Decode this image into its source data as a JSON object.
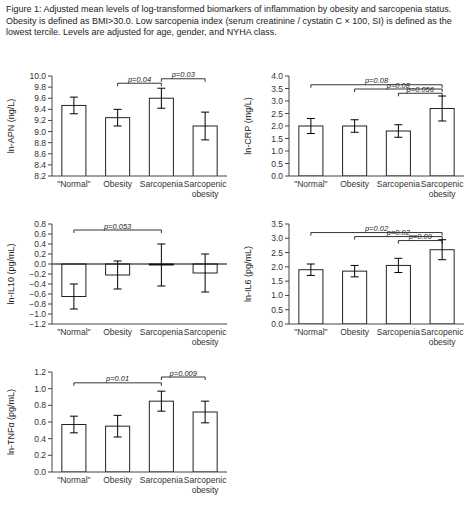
{
  "chart_data": [
    {
      "type": "bar",
      "title": "Figure 1: Adjusted mean levels of log-transformed biomarkers of inflammation by obesity and sarcopenia status. Obesity is defined as BMI>30.0. Low sarcopenia index (serum creatinine / cystatin C × 100, SI) is defined as the lowest tercile. Levels are adjusted for age, gender, and NYHA class.",
      "y_label": "ln-APN (ng/L)",
      "categories": [
        "\"Normal\"",
        "Obesity",
        "Sarcopenia",
        "Sarcopenic\nobesity"
      ],
      "values": [
        9.47,
        9.25,
        9.6,
        9.1
      ],
      "errors": [
        0.15,
        0.15,
        0.18,
        0.25
      ],
      "color": "white",
      "grid": false,
      "ylim": [
        8.2,
        10.0
      ],
      "yticks": [
        8.2,
        8.4,
        8.6,
        8.8,
        {
          "value": 9,
          "label": "9.0"
        },
        9.2,
        9.4,
        9.6,
        9.8,
        {
          "value": 10,
          "label": "10.0"
        }
      ],
      "annotations": [
        {
          "from": "Obesity",
          "to": "Sarcopenia",
          "y": 9.87,
          "label": "p=0.04"
        },
        {
          "from": "Sarcopenia",
          "to": "Sarcopenic\nobesity",
          "y": 9.95,
          "label": "p=0.03"
        }
      ]
    },
    {
      "type": "bar",
      "y_label": "ln-CRP (mg/L)",
      "categories": [
        "\"Normal\"",
        "Obesity",
        "Sarcopenia",
        "Sarcopenic\nobesity"
      ],
      "values": [
        2.0,
        2.0,
        1.8,
        2.7
      ],
      "errors": [
        0.3,
        0.25,
        0.25,
        0.5
      ],
      "color": "white",
      "grid": false,
      "ylim": [
        0,
        4.0
      ],
      "yticks": [
        {
          "value": 0,
          "label": "0.0"
        },
        0.5,
        {
          "value": 1,
          "label": "1.0"
        },
        1.5,
        {
          "value": 2,
          "label": "2.0"
        },
        2.5,
        {
          "value": 3,
          "label": "3.0"
        },
        3.5,
        {
          "value": 4,
          "label": "4.0"
        }
      ],
      "annotations": [
        {
          "from": "\"Normal\"",
          "to": "Sarcopenic\nobesity",
          "y": 3.65,
          "label": "p=0.08"
        },
        {
          "from": "Obesity",
          "to": "Sarcopenic\nobesity",
          "y": 3.48,
          "label": "p=0.08"
        },
        {
          "from": "Sarcopenia",
          "to": "Sarcopenic\nobesity",
          "y": 3.31,
          "label": "p=0.056"
        }
      ]
    },
    {
      "type": "bar",
      "y_label": "ln-IL10 (pg/mL)",
      "categories": [
        "\"Normal\"",
        "Obesity",
        "Sarcopenia",
        "Sarcopenic\nobesity"
      ],
      "values": [
        -0.65,
        -0.22,
        -0.02,
        -0.18
      ],
      "errors": [
        0.25,
        0.28,
        0.42,
        0.38
      ],
      "color": "white",
      "grid": false,
      "ylim": [
        -1.2,
        0.8
      ],
      "yticks": [
        {
          "value": -1.2,
          "label": "−1.2"
        },
        {
          "value": -1,
          "label": "−1.0"
        },
        {
          "value": -0.8,
          "label": "−0.8"
        },
        {
          "value": -0.6,
          "label": "−0.6"
        },
        {
          "value": -0.4,
          "label": "−0.4"
        },
        {
          "value": -0.2,
          "label": "−0.2"
        },
        {
          "value": 0,
          "label": "0.0"
        },
        0.2,
        0.4,
        0.6,
        0.8
      ],
      "annotations": [
        {
          "from": "\"Normal\"",
          "to": "Sarcopenia",
          "y": 0.68,
          "label": "p=0.053"
        }
      ]
    },
    {
      "type": "bar",
      "y_label": "ln-IL6 (pg/mL)",
      "categories": [
        "\"Normal\"",
        "Obesity",
        "Sarcopenia",
        "Sarcopenic\nobesity"
      ],
      "values": [
        1.9,
        1.85,
        2.05,
        2.6
      ],
      "errors": [
        0.2,
        0.2,
        0.25,
        0.35
      ],
      "color": "white",
      "grid": false,
      "ylim": [
        0,
        3.5
      ],
      "yticks": [
        {
          "value": 0,
          "label": "0.0"
        },
        0.5,
        {
          "value": 1,
          "label": "1.0"
        },
        1.5,
        {
          "value": 2,
          "label": "2.0"
        },
        2.5,
        {
          "value": 3,
          "label": "3.0"
        },
        3.5
      ],
      "annotations": [
        {
          "from": "\"Normal\"",
          "to": "Sarcopenic\nobesity",
          "y": 3.2,
          "label": "p=0.02"
        },
        {
          "from": "Obesity",
          "to": "Sarcopenic\nobesity",
          "y": 3.06,
          "label": "p=0.02"
        },
        {
          "from": "Sarcopenia",
          "to": "Sarcopenic\nobesity",
          "y": 2.92,
          "label": "p=0.09"
        }
      ]
    },
    {
      "type": "bar",
      "y_label": "ln-TNFα (pg/mL)",
      "categories": [
        "\"Normal\"",
        "Obesity",
        "Sarcopenia",
        "Sarcopenic\nobesity"
      ],
      "values": [
        0.57,
        0.55,
        0.85,
        0.72
      ],
      "errors": [
        0.1,
        0.13,
        0.12,
        0.13
      ],
      "color": "white",
      "grid": false,
      "ylim": [
        0,
        1.2
      ],
      "yticks": [
        {
          "value": 0,
          "label": "0.0"
        },
        0.2,
        0.4,
        0.6,
        0.8,
        {
          "value": 1,
          "label": "1.0"
        },
        1.2
      ],
      "annotations": [
        {
          "from": "\"Normal\"",
          "to": "Sarcopenia",
          "y": 1.07,
          "label": "p=0.01"
        },
        {
          "from": "Sarcopenia",
          "to": "Sarcopenic\nobesity",
          "y": 1.14,
          "label": "p=0.009"
        }
      ]
    }
  ]
}
